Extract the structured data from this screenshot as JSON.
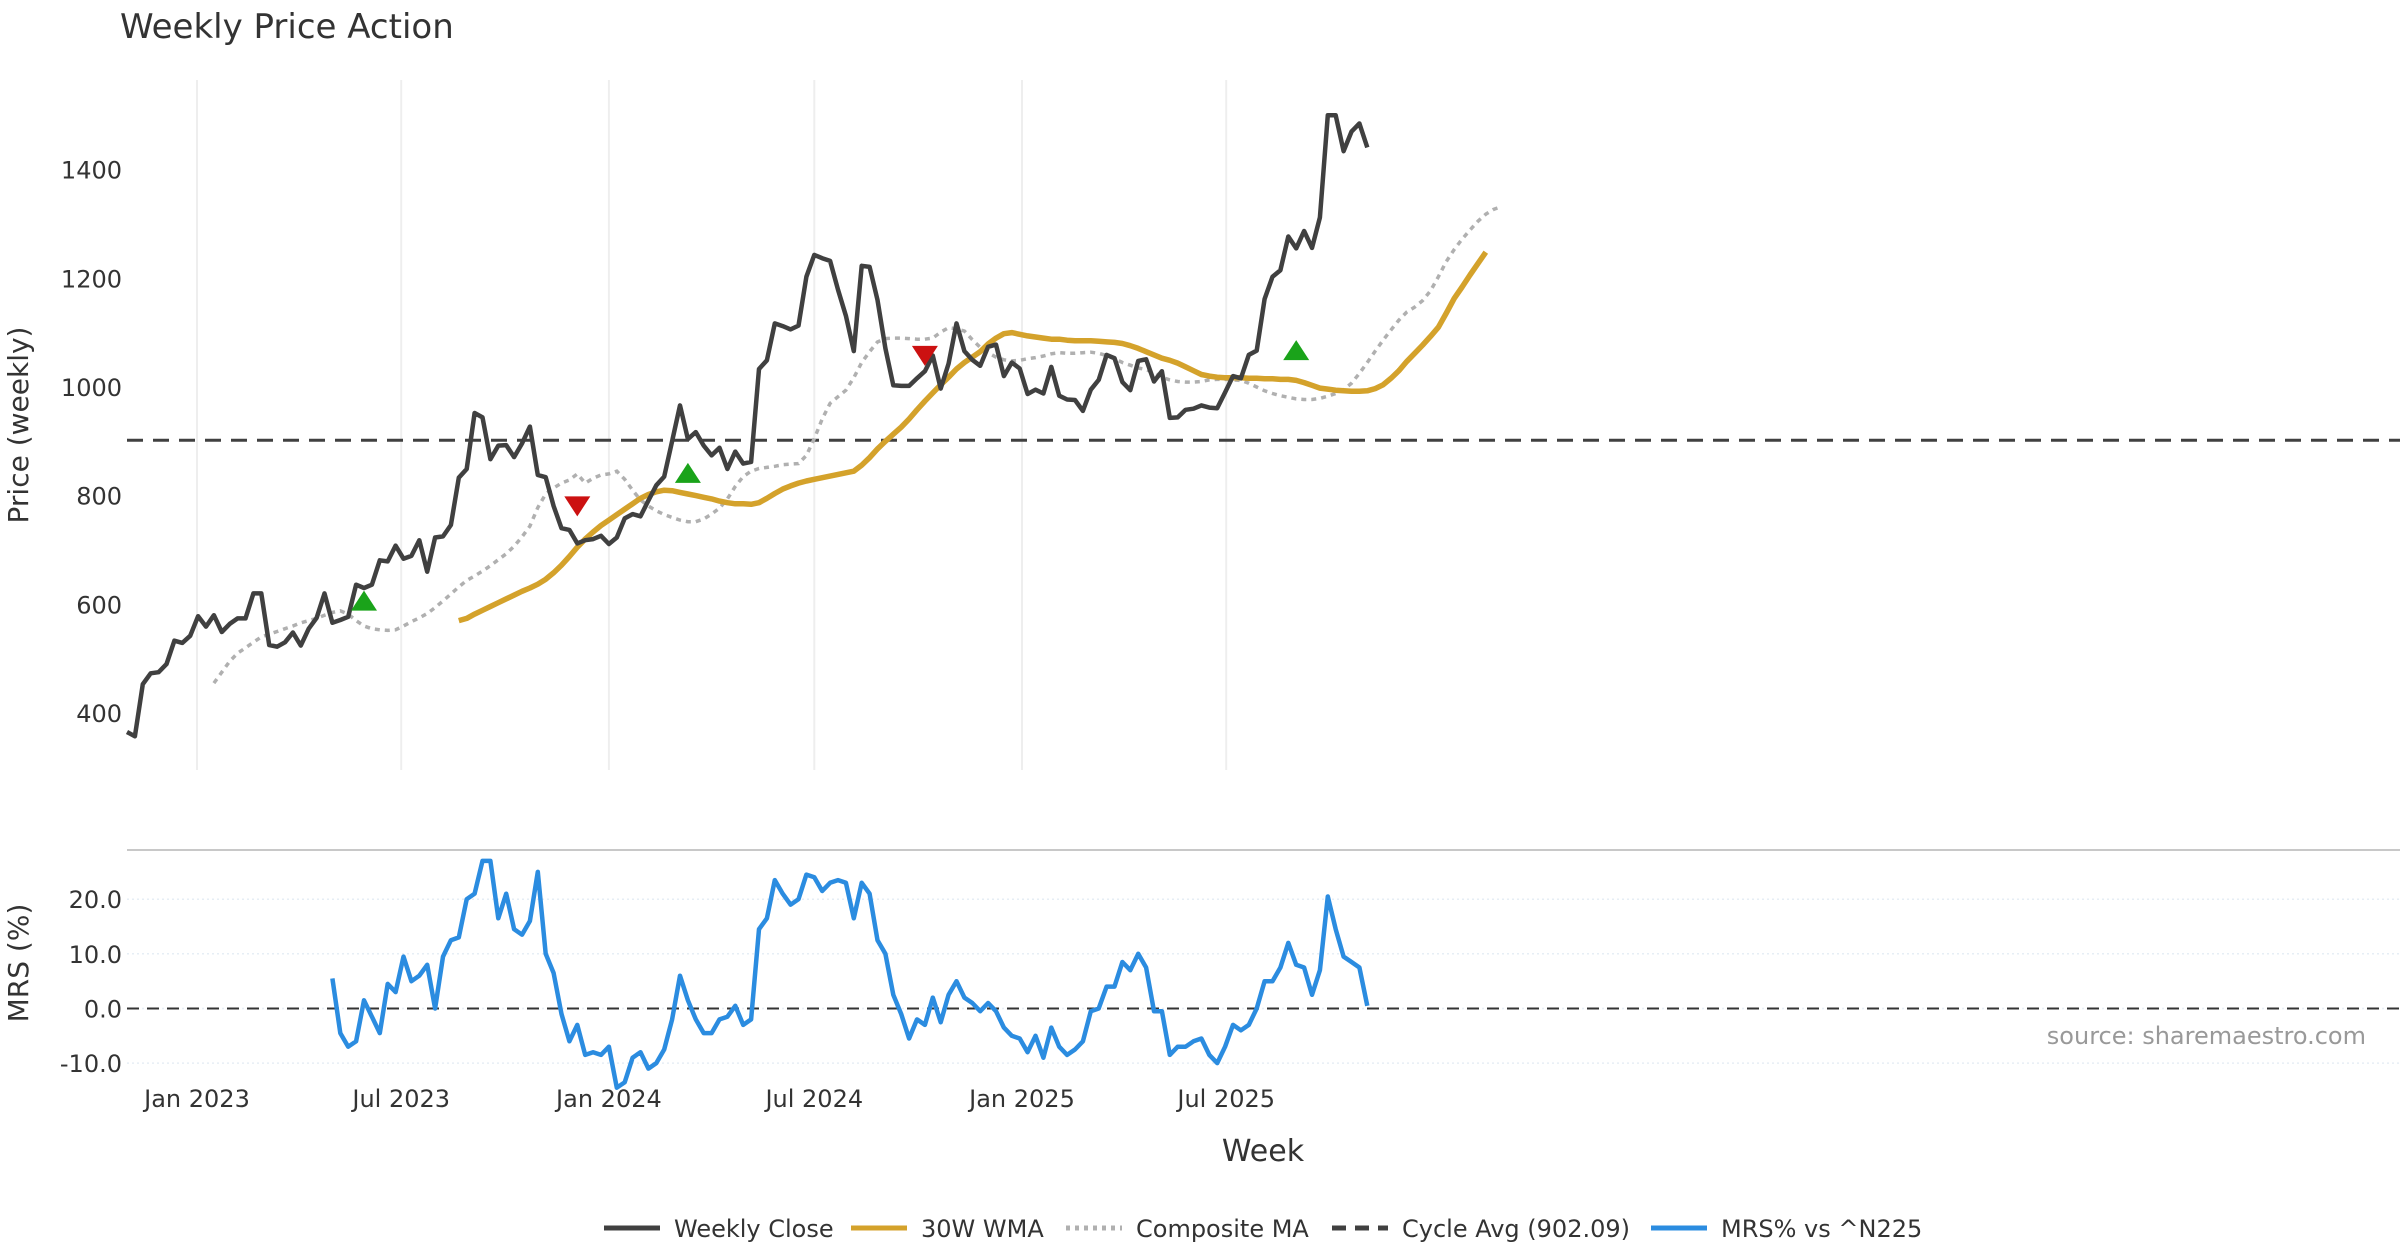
{
  "title": "Weekly Price Action",
  "source_note": "source: sharemaestro.com",
  "colors": {
    "close": "#404040",
    "wma": "#d4a22b",
    "composite": "#b0b0b0",
    "cycle": "#404040",
    "mrs": "#2b8ce0",
    "buy": "#1aa31a",
    "sell": "#cc1111",
    "grid": "#eeeeee"
  },
  "chart_data": [
    {
      "type": "line",
      "title": "Weekly Price Action",
      "ylabel": "Price (weekly)",
      "ylim": [
        295,
        1565
      ],
      "yticks": [
        400,
        600,
        800,
        1000,
        1200,
        1400
      ],
      "grid": true,
      "x_start": "2022-10-31",
      "x_step_days": 7,
      "xticks": [
        {
          "label": "Jan 2023",
          "date": "2023-01-01"
        },
        {
          "label": "Jul 2023",
          "date": "2023-07-01"
        },
        {
          "label": "Jan 2024",
          "date": "2024-01-01"
        },
        {
          "label": "Jul 2024",
          "date": "2024-07-01"
        },
        {
          "label": "Jan 2025",
          "date": "2025-01-01"
        },
        {
          "label": "Jul 2025",
          "date": "2025-07-01"
        }
      ],
      "series": [
        {
          "name": "Weekly Close",
          "values": [
            365,
            357,
            453,
            473,
            475,
            490,
            533,
            529,
            542,
            578,
            559,
            580,
            549,
            564,
            574,
            574,
            620,
            620,
            525,
            522,
            530,
            548,
            524,
            555,
            575,
            620,
            566,
            571,
            577,
            636,
            630,
            636,
            681,
            679,
            708,
            684,
            689,
            718,
            660,
            723,
            725,
            746,
            833,
            849,
            952,
            944,
            867,
            892,
            893,
            871,
            896,
            927,
            838,
            834,
            781,
            740,
            737,
            712,
            718,
            720,
            726,
            711,
            723,
            758,
            766,
            762,
            791,
            819,
            835,
            900,
            966,
            904,
            917,
            892,
            874,
            888,
            849,
            881,
            859,
            862,
            1033,
            1049,
            1117,
            1112,
            1106,
            1113,
            1203,
            1243,
            1237,
            1232,
            1179,
            1131,
            1066,
            1223,
            1221,
            1160,
            1071,
            1003,
            1002,
            1002,
            1016,
            1029,
            1058,
            997,
            1043,
            1117,
            1066,
            1050,
            1039,
            1074,
            1078,
            1020,
            1045,
            1034,
            987,
            995,
            988,
            1037,
            984,
            977,
            976,
            956,
            995,
            1013,
            1059,
            1053,
            1009,
            994,
            1048,
            1051,
            1010,
            1029,
            943,
            944,
            958,
            960,
            966,
            962,
            961,
            990,
            1020,
            1016,
            1059,
            1067,
            1162,
            1203,
            1215,
            1277,
            1255,
            1287,
            1256,
            1312,
            1500,
            1500,
            1434,
            1470,
            1485,
            1441
          ]
        },
        {
          "name": "30W WMA",
          "start_index": 42,
          "values": [
            570,
            574,
            582,
            589,
            596,
            603,
            610,
            617,
            624,
            630,
            637,
            646,
            658,
            672,
            688,
            705,
            720,
            733,
            745,
            755,
            765,
            775,
            785,
            795,
            802,
            807,
            810,
            809,
            806,
            803,
            800,
            797,
            794,
            790,
            787,
            785,
            785,
            784,
            787,
            795,
            804,
            812,
            818,
            823,
            827,
            830,
            833,
            836,
            839,
            842,
            845,
            856,
            870,
            886,
            900,
            913,
            926,
            941,
            958,
            974,
            989,
            1004,
            1018,
            1033,
            1045,
            1055,
            1065,
            1079,
            1090,
            1098,
            1100,
            1097,
            1094,
            1092,
            1090,
            1088,
            1088,
            1086,
            1085,
            1085,
            1085,
            1084,
            1083,
            1082,
            1080,
            1076,
            1071,
            1065,
            1059,
            1053,
            1049,
            1044,
            1037,
            1030,
            1023,
            1020,
            1018,
            1017,
            1017,
            1017,
            1016,
            1016,
            1015,
            1015,
            1014,
            1014,
            1012,
            1008,
            1003,
            998,
            996,
            994,
            993,
            992,
            992,
            993,
            997,
            1004,
            1016,
            1030,
            1047,
            1062,
            1077,
            1093,
            1110,
            1136,
            1163,
            1184,
            1206,
            1227,
            1248
          ]
        },
        {
          "name": "Composite MA",
          "start_index": 11,
          "values": [
            455,
            475,
            495,
            510,
            520,
            530,
            540,
            545,
            550,
            555,
            560,
            566,
            570,
            574,
            580,
            585,
            588,
            582,
            570,
            560,
            555,
            553,
            552,
            553,
            560,
            568,
            575,
            583,
            594,
            606,
            619,
            632,
            644,
            652,
            661,
            671,
            682,
            693,
            707,
            724,
            744,
            778,
            803,
            814,
            823,
            829,
            840,
            823,
            832,
            838,
            840,
            845,
            830,
            810,
            792,
            781,
            772,
            765,
            760,
            755,
            752,
            752,
            757,
            766,
            777,
            794,
            817,
            835,
            845,
            850,
            852,
            854,
            857,
            858,
            859,
            874,
            905,
            941,
            970,
            982,
            994,
            1017,
            1045,
            1065,
            1083,
            1089,
            1090,
            1090,
            1089,
            1088,
            1088,
            1090,
            1101,
            1109,
            1107,
            1103,
            1087,
            1073,
            1063,
            1055,
            1050,
            1048,
            1049,
            1052,
            1054,
            1057,
            1061,
            1063,
            1062,
            1062,
            1063,
            1064,
            1062,
            1058,
            1052,
            1045,
            1040,
            1035,
            1032,
            1026,
            1018,
            1013,
            1010,
            1009,
            1009,
            1010,
            1013,
            1014,
            1014,
            1013,
            1012,
            1007,
            1000,
            993,
            988,
            984,
            981,
            978,
            977,
            977,
            979,
            983,
            988,
            995,
            1007,
            1025,
            1045,
            1066,
            1086,
            1105,
            1123,
            1138,
            1147,
            1159,
            1177,
            1203,
            1231,
            1253,
            1272,
            1289,
            1305,
            1318,
            1327,
            1332
          ]
        },
        {
          "name": "Cycle Avg (902.09)",
          "constant": 902.09
        }
      ],
      "signals": [
        {
          "type": "buy",
          "index": 30,
          "value": 605
        },
        {
          "type": "sell",
          "index": 57,
          "value": 782
        },
        {
          "type": "buy",
          "index": 71,
          "value": 840
        },
        {
          "type": "sell",
          "index": 101,
          "value": 1059
        },
        {
          "type": "buy",
          "index": 148,
          "value": 1066
        }
      ]
    },
    {
      "type": "line",
      "ylabel": "MRS (%)",
      "ylim": [
        -14,
        29
      ],
      "yticks": [
        -10.0,
        0.0,
        10.0,
        20.0
      ],
      "xlabel": "Week",
      "series": [
        {
          "name": "MRS% vs ^N225",
          "start_index": 26,
          "values": [
            5.5,
            -4.5,
            -7.0,
            -6.0,
            1.5,
            -1.5,
            -4.5,
            4.5,
            3.0,
            9.5,
            5.0,
            6.0,
            8.0,
            0.0,
            9.5,
            12.5,
            13.0,
            20.0,
            21.0,
            27.0,
            27.0,
            16.5,
            21.0,
            14.5,
            13.5,
            16.0,
            25.0,
            10.0,
            6.5,
            -1.0,
            -6.0,
            -3.0,
            -8.5,
            -8.0,
            -8.5,
            -7.0,
            -14.5,
            -13.5,
            -9.0,
            -8.0,
            -11.0,
            -10.0,
            -7.5,
            -2.0,
            6.0,
            1.5,
            -2.0,
            -4.5,
            -4.5,
            -2.0,
            -1.5,
            0.5,
            -3.0,
            -2.0,
            14.5,
            16.5,
            23.5,
            21.0,
            19.0,
            20.0,
            24.5,
            24.0,
            21.5,
            23.0,
            23.5,
            23.0,
            16.5,
            23.0,
            21.0,
            12.5,
            10.0,
            2.5,
            -1.0,
            -5.5,
            -2.0,
            -3.0,
            2.0,
            -2.5,
            2.5,
            5.0,
            2.0,
            1.0,
            -0.5,
            1.0,
            -0.5,
            -3.5,
            -5.0,
            -5.5,
            -8.0,
            -5.0,
            -9.0,
            -3.5,
            -7.0,
            -8.5,
            -7.5,
            -6.0,
            -0.5,
            0.0,
            4.0,
            4.0,
            8.5,
            7.0,
            10.0,
            7.5,
            -0.5,
            -0.5,
            -8.5,
            -7.0,
            -7.0,
            -6.0,
            -5.5,
            -8.5,
            -10.0,
            -7.0,
            -3.0,
            -4.0,
            -3.0,
            0.0,
            5.0,
            5.0,
            7.5,
            12.0,
            8.0,
            7.5,
            2.5,
            7.0,
            20.5,
            14.5,
            9.5,
            8.5,
            7.5,
            0.5
          ]
        },
        {
          "name": "Zero",
          "constant": 0.0
        }
      ]
    }
  ],
  "legend": [
    {
      "label": "Weekly Close",
      "style": "solid",
      "color": "#404040"
    },
    {
      "label": "30W WMA",
      "style": "solid",
      "color": "#d4a22b"
    },
    {
      "label": "Composite MA",
      "style": "dotted",
      "color": "#b0b0b0"
    },
    {
      "label": "Cycle Avg (902.09)",
      "style": "dashed",
      "color": "#404040"
    },
    {
      "label": "MRS% vs ^N225",
      "style": "solid",
      "color": "#2b8ce0"
    }
  ]
}
